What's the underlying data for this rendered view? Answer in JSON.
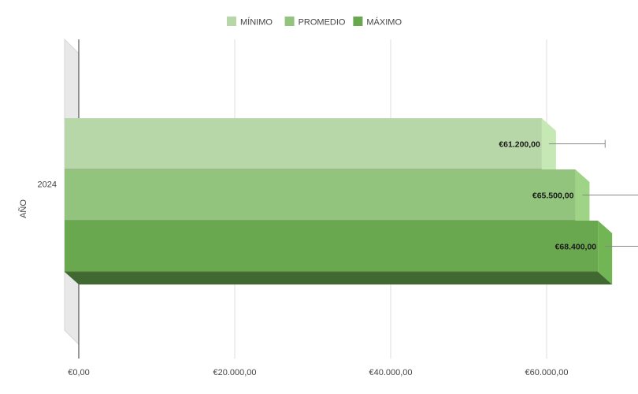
{
  "chart_data": {
    "type": "bar",
    "orientation": "horizontal",
    "style": "3d",
    "categories": [
      "2024"
    ],
    "ylabel": "AÑO",
    "xlabel": "",
    "xlim": [
      0,
      70000
    ],
    "x_ticks": [
      0,
      20000,
      40000,
      60000
    ],
    "x_tick_labels": [
      "€0,00",
      "€20.000,00",
      "€40.000,00",
      "€60.000,00"
    ],
    "grid": true,
    "legend_position": "top-center",
    "series": [
      {
        "name": "MÍNIMO",
        "color": "#b7d7a8",
        "values": [
          61200
        ],
        "value_labels": [
          "€61.200,00"
        ],
        "error_upper": [
          67500
        ]
      },
      {
        "name": "PROMEDIO",
        "color": "#93c47d",
        "values": [
          65500
        ],
        "value_labels": [
          "€65.500,00"
        ],
        "error_upper": [
          72000
        ]
      },
      {
        "name": "MÁXIMO",
        "color": "#6aa84f",
        "values": [
          68400
        ],
        "value_labels": [
          "€68.400,00"
        ],
        "error_upper": [
          75000
        ]
      }
    ]
  }
}
